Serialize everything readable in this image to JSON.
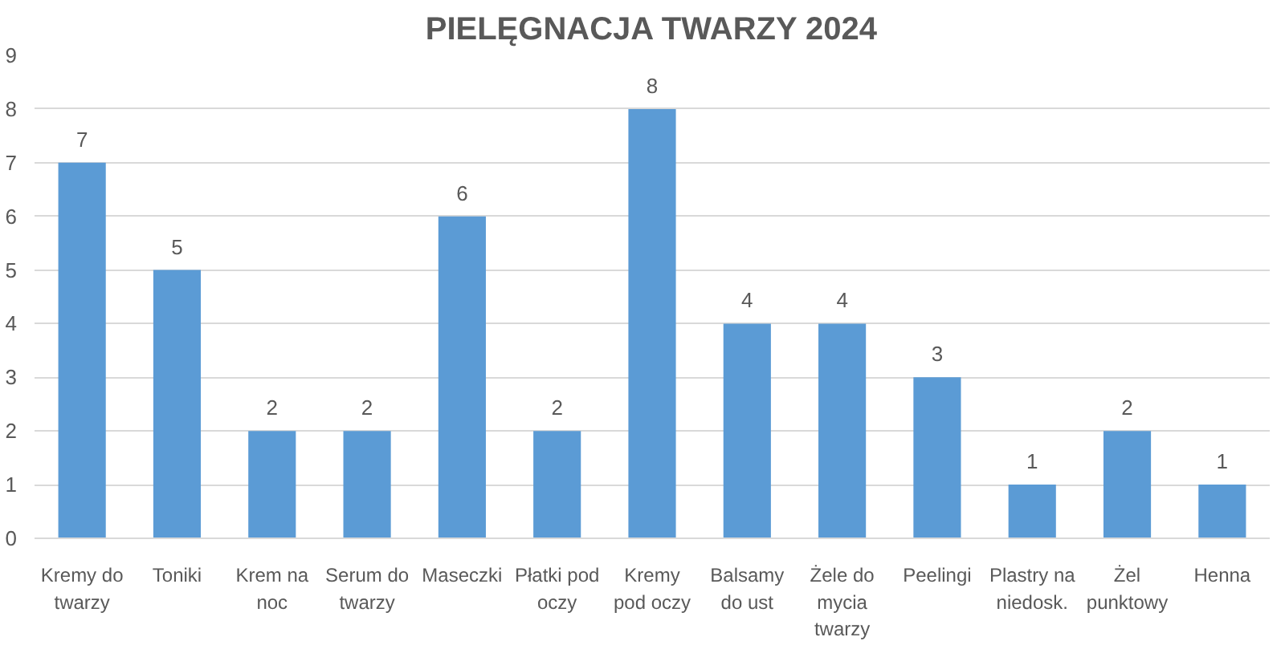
{
  "chart_data": {
    "type": "bar",
    "title": "PIELĘGNACJA TWARZY 2024",
    "categories": [
      "Kremy do twarzy",
      "Toniki",
      "Krem na noc",
      "Serum do twarzy",
      "Maseczki",
      "Płatki pod oczy",
      "Kremy pod oczy",
      "Balsamy do ust",
      "Żele do mycia twarzy",
      "Peelingi",
      "Plastry na niedosk.",
      "Żel punktowy",
      "Henna"
    ],
    "values": [
      7,
      5,
      2,
      2,
      6,
      2,
      8,
      4,
      4,
      3,
      1,
      2,
      1
    ],
    "color": "#5b9bd5",
    "ylim": [
      0,
      9
    ],
    "yticks": [
      0,
      1,
      2,
      3,
      4,
      5,
      6,
      7,
      8,
      9
    ],
    "grid": "y",
    "data_labels": true
  }
}
